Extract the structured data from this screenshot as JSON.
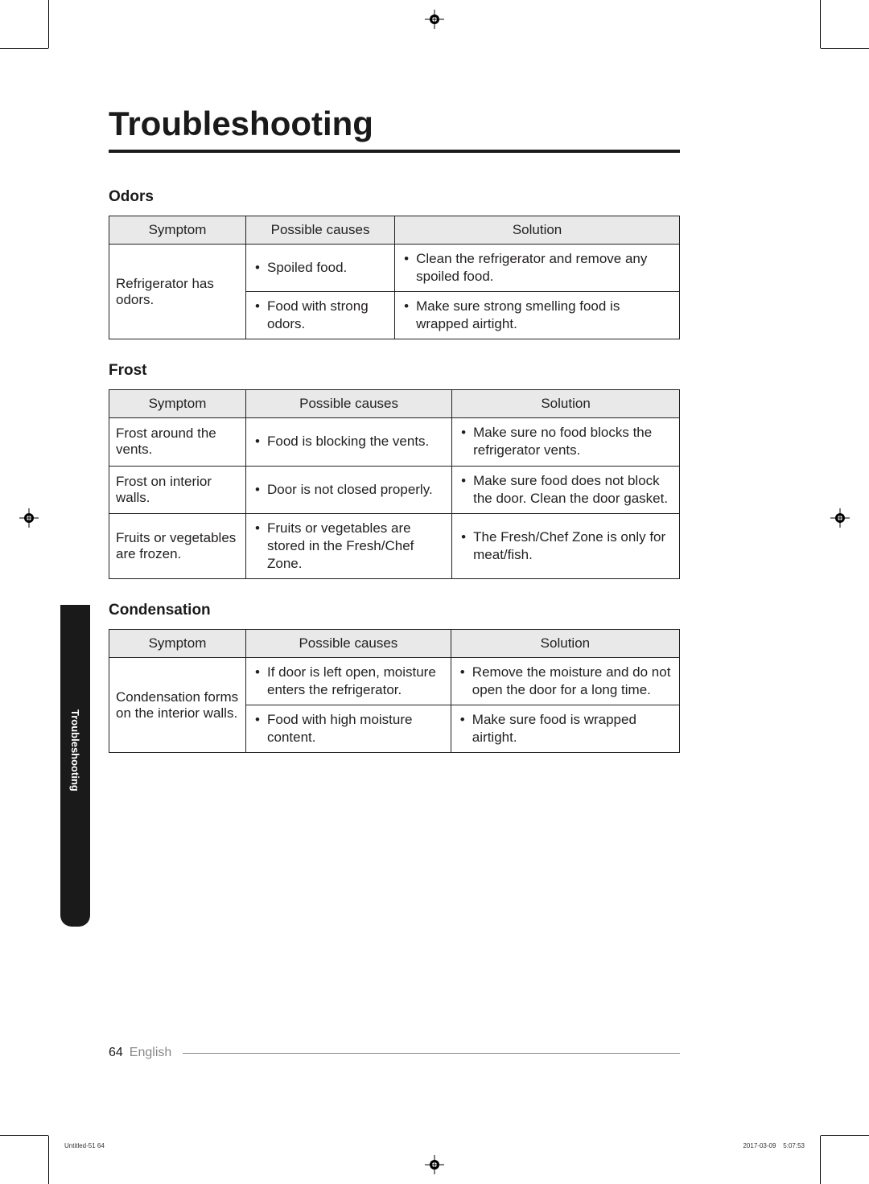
{
  "title": "Troubleshooting",
  "sections": [
    {
      "title": "Odors",
      "headers": [
        "Symptom",
        "Possible causes",
        "Solution"
      ],
      "rows": [
        {
          "symptom": "Refrigerator has odors.",
          "rowspan": 2,
          "cause": "Spoiled food.",
          "solution": "Clean the refrigerator and remove any spoiled food."
        },
        {
          "cause": "Food with strong odors.",
          "solution": "Make sure strong smelling food is wrapped airtight."
        }
      ]
    },
    {
      "title": "Frost",
      "headers": [
        "Symptom",
        "Possible causes",
        "Solution"
      ],
      "rows": [
        {
          "symptom": "Frost around the vents.",
          "cause": "Food is blocking the vents.",
          "solution": "Make sure no food blocks the refrigerator vents."
        },
        {
          "symptom": "Frost on interior walls.",
          "cause": "Door is not closed properly.",
          "solution": "Make sure food does not block the door. Clean the door gasket."
        },
        {
          "symptom": "Fruits or vegetables are frozen.",
          "cause": "Fruits or vegetables are stored in the Fresh/Chef Zone.",
          "solution": "The Fresh/Chef Zone is only for meat/fish."
        }
      ]
    },
    {
      "title": "Condensation",
      "headers": [
        "Symptom",
        "Possible causes",
        "Solution"
      ],
      "rows": [
        {
          "symptom": "Condensation forms on the interior walls.",
          "rowspan": 2,
          "cause": "If door is left open, moisture enters the refrigerator.",
          "solution": "Remove the moisture and do not open the door for a long time."
        },
        {
          "cause": "Food with high moisture content.",
          "solution": "Make sure food is wrapped airtight."
        }
      ]
    }
  ],
  "sideTab": "Troubleshooting",
  "pageNumber": "64",
  "language": "English",
  "tinyLeft": "Untitled-51   64",
  "tinyRight": "2017-03-09      5:07:53"
}
